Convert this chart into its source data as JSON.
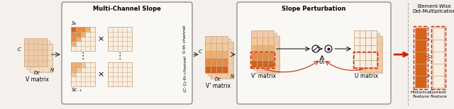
{
  "fig_width": 6.4,
  "fig_height": 1.54,
  "dpi": 100,
  "bg_color": "#f5f0eb",
  "salmon_light": "#f0cba8",
  "salmon_lighter": "#f5ddc4",
  "salmon_lightest": "#faeee0",
  "orange_dark": "#d4621a",
  "orange_mid": "#e88840",
  "orange_light": "#f0b070",
  "orange_lighter": "#f5c898",
  "grid_line": "#c8a888",
  "grid_line_light": "#d8c0a8",
  "box_edge": "#888888",
  "red_dash": "#cc2200",
  "arrow_red": "#cc2200",
  "title1": "Multi-Channel Slope",
  "title2": "Slope Perturbation",
  "title3": "Element-Wise\nDot-Multiplication",
  "label_V": "V matrix",
  "label_Vp": "V' matrix",
  "label_Vpp": "V' matrix",
  "label_U": "U matrix",
  "label_hist": "Historical\nFeature",
  "label_curr": "Current\nFeature",
  "label_C": "C",
  "label_N": "N",
  "label_Dc": "Dᴄ",
  "label_S0": "S₀",
  "label_SC1": "Sᴄ₋₁",
  "label_0ch": "0-th channel",
  "label_Cm1ch": "(C-1)-th channel",
  "label_Theta": "Θₛ"
}
